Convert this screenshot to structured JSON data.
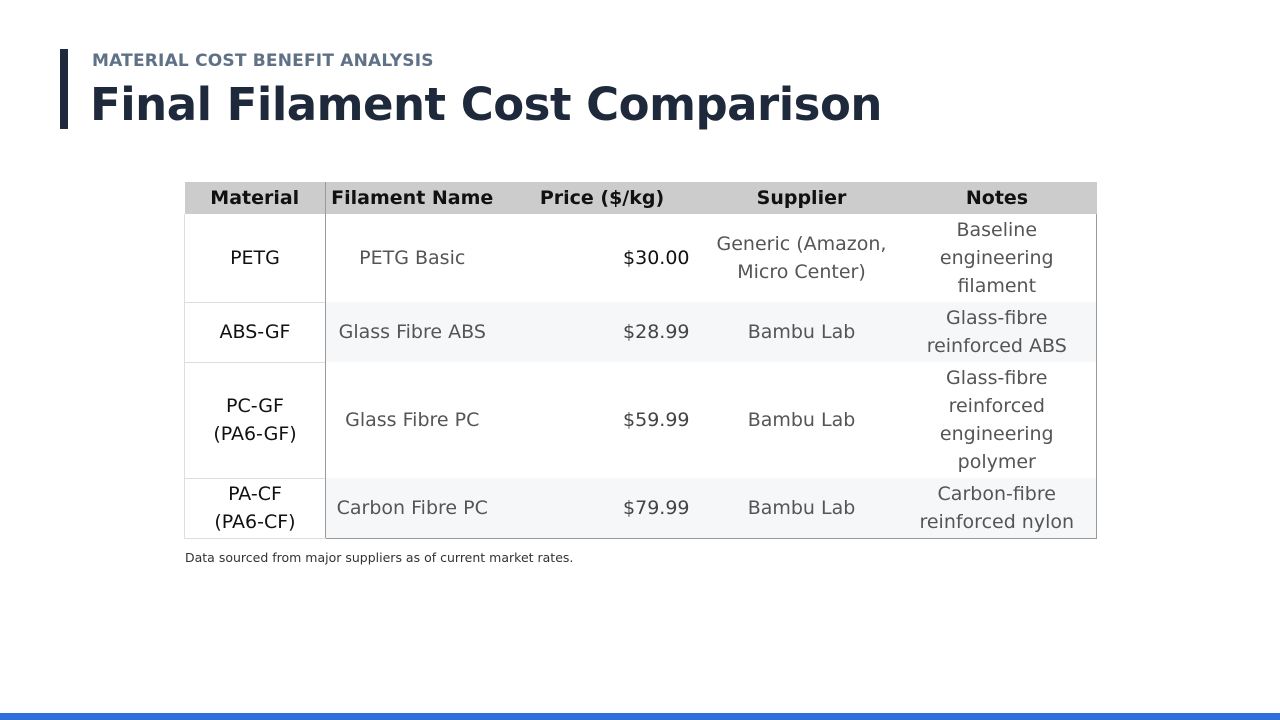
{
  "header": {
    "eyebrow": "MATERIAL COST BENEFIT ANALYSIS",
    "title": "Final Filament Cost Comparison"
  },
  "table": {
    "columns": [
      "Material",
      "Filament Name",
      "Price ($/kg)",
      "Supplier",
      "Notes"
    ],
    "rows": [
      {
        "material": "PETG",
        "name": "PETG Basic",
        "price": "$30.00",
        "supplier": "Generic (Amazon, Micro Center)",
        "notes": "Baseline engineering filament"
      },
      {
        "material": "ABS-GF",
        "name": "Glass Fibre ABS",
        "price": "$28.99",
        "supplier": "Bambu Lab",
        "notes": "Glass-fibre reinforced ABS"
      },
      {
        "material": "PC-GF (PA6-GF)",
        "name": "Glass Fibre PC",
        "price": "$59.99",
        "supplier": "Bambu Lab",
        "notes": "Glass-fibre reinforced engineering polymer"
      },
      {
        "material": "PA-CF (PA6-CF)",
        "name": "Carbon Fibre PC",
        "price": "$79.99",
        "supplier": "Bambu Lab",
        "notes": "Carbon-fibre reinforced nylon"
      }
    ]
  },
  "footnote": "Data sourced from major suppliers as of current market rates.",
  "colors": {
    "title": "#1e2a3b",
    "eyebrow": "#5f7186",
    "header_bg": "#cccccc",
    "stripe_bg": "#f5f7f9",
    "bottom_bar": "#2f6fdc"
  }
}
